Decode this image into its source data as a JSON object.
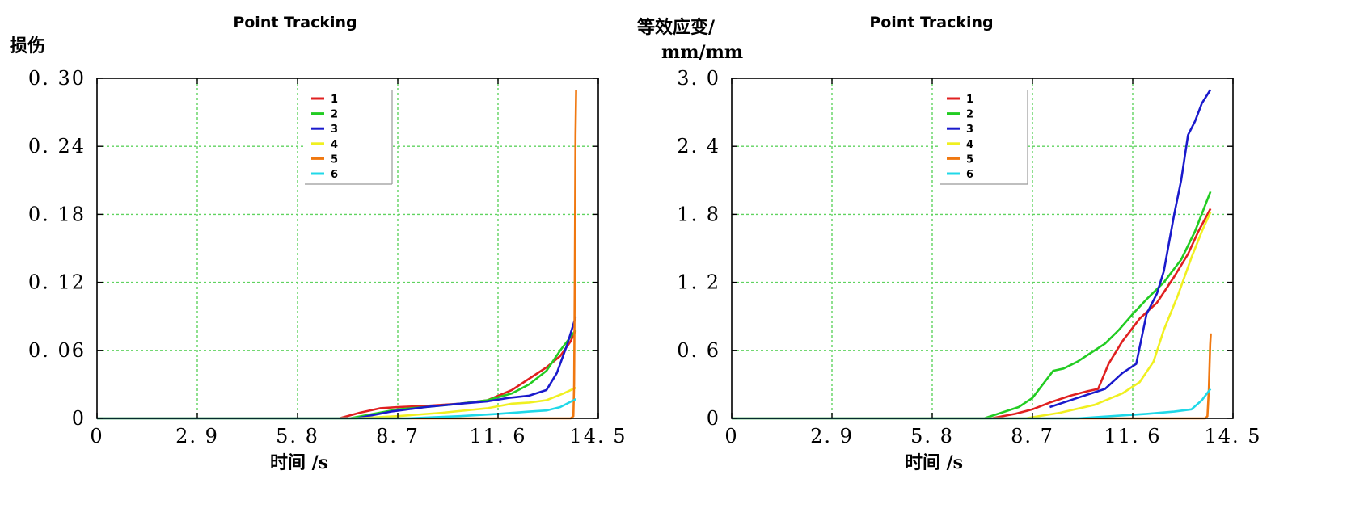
{
  "chart_data": [
    {
      "type": "line",
      "title": "Point Tracking",
      "xlabel": "时间 /s",
      "ylabel": "损伤",
      "ylabel_lines": [
        "损伤"
      ],
      "xlim": [
        0,
        14.5
      ],
      "ylim": [
        0,
        0.3
      ],
      "xticks": [
        0,
        2.9,
        5.8,
        8.7,
        11.6,
        14.5
      ],
      "xtick_labels": [
        "0",
        "2. 9",
        "5. 8",
        "8. 7",
        "11. 6",
        "14. 5"
      ],
      "yticks": [
        0,
        0.06,
        0.12,
        0.18,
        0.24,
        0.3
      ],
      "ytick_labels": [
        "0",
        "0. 06",
        "0. 12",
        "0. 18",
        "0. 24",
        "0. 30"
      ],
      "grid": true,
      "legend_position": "top-center",
      "series": [
        {
          "name": "1",
          "color": "#e02020",
          "x": [
            0,
            7.0,
            7.6,
            8.2,
            8.7,
            9.5,
            10.5,
            11.3,
            12.0,
            12.5,
            13.0,
            13.4,
            13.7,
            13.8,
            13.85
          ],
          "y": [
            0,
            0,
            0.005,
            0.009,
            0.01,
            0.011,
            0.013,
            0.016,
            0.025,
            0.035,
            0.045,
            0.055,
            0.068,
            0.075,
            0.077
          ]
        },
        {
          "name": "2",
          "color": "#22cc22",
          "x": [
            0,
            7.3,
            8.0,
            8.7,
            9.5,
            10.5,
            11.3,
            12.0,
            12.5,
            13.0,
            13.4,
            13.7,
            13.85
          ],
          "y": [
            0,
            0,
            0.004,
            0.008,
            0.01,
            0.013,
            0.016,
            0.022,
            0.03,
            0.042,
            0.06,
            0.072,
            0.078
          ]
        },
        {
          "name": "3",
          "color": "#1a1acc",
          "x": [
            0,
            7.5,
            8.5,
            9.5,
            10.5,
            11.3,
            11.9,
            12.5,
            13.0,
            13.3,
            13.6,
            13.8,
            13.85
          ],
          "y": [
            0,
            0,
            0.006,
            0.01,
            0.013,
            0.015,
            0.018,
            0.02,
            0.025,
            0.04,
            0.065,
            0.085,
            0.09
          ]
        },
        {
          "name": "4",
          "color": "#f0f020",
          "x": [
            0,
            7.5,
            8.7,
            10.0,
            11.3,
            12.0,
            12.5,
            13.0,
            13.5,
            13.85
          ],
          "y": [
            0,
            0,
            0.002,
            0.005,
            0.009,
            0.013,
            0.014,
            0.016,
            0.022,
            0.027
          ]
        },
        {
          "name": "5",
          "color": "#f07810",
          "x": [
            0,
            13.7,
            13.78,
            13.8,
            13.82,
            13.84,
            13.86
          ],
          "y": [
            0,
            0,
            0.002,
            0.03,
            0.12,
            0.25,
            0.29
          ]
        },
        {
          "name": "6",
          "color": "#20d8e8",
          "x": [
            0,
            9.0,
            10.5,
            11.6,
            12.5,
            13.0,
            13.4,
            13.85
          ],
          "y": [
            0,
            0,
            0.002,
            0.004,
            0.006,
            0.007,
            0.01,
            0.017
          ]
        }
      ]
    },
    {
      "type": "line",
      "title": "Point Tracking",
      "xlabel": "时间 /s",
      "ylabel": "等效应变/ mm/mm",
      "ylabel_lines": [
        "等效应变/",
        "mm/mm"
      ],
      "xlim": [
        0,
        14.5
      ],
      "ylim": [
        0,
        3.0
      ],
      "xticks": [
        0,
        2.9,
        5.8,
        8.7,
        11.6,
        14.5
      ],
      "xtick_labels": [
        "0",
        "2. 9",
        "5. 8",
        "8. 7",
        "11. 6",
        "14. 5"
      ],
      "yticks": [
        0,
        0.6,
        1.2,
        1.8,
        2.4,
        3.0
      ],
      "ytick_labels": [
        "0",
        "0. 6",
        "1. 2",
        "1. 8",
        "2. 4",
        "3. 0"
      ],
      "grid": true,
      "legend_position": "top-center",
      "series": [
        {
          "name": "1",
          "color": "#e02020",
          "x": [
            0,
            7.5,
            8.2,
            8.7,
            9.2,
            9.8,
            10.3,
            10.6,
            10.9,
            11.3,
            11.8,
            12.3,
            12.8,
            13.2,
            13.5,
            13.85
          ],
          "y": [
            0,
            0,
            0.04,
            0.08,
            0.14,
            0.2,
            0.24,
            0.26,
            0.48,
            0.68,
            0.88,
            1.02,
            1.25,
            1.45,
            1.65,
            1.85
          ]
        },
        {
          "name": "2",
          "color": "#22cc22",
          "x": [
            0,
            7.3,
            7.8,
            8.3,
            8.7,
            9.0,
            9.3,
            9.6,
            10.0,
            10.4,
            10.8,
            11.2,
            11.6,
            12.0,
            12.5,
            13.0,
            13.4,
            13.85
          ],
          "y": [
            0,
            0,
            0.05,
            0.1,
            0.18,
            0.3,
            0.42,
            0.44,
            0.5,
            0.58,
            0.66,
            0.78,
            0.92,
            1.05,
            1.2,
            1.4,
            1.65,
            2.0
          ]
        },
        {
          "name": "3",
          "color": "#1a1acc",
          "x": [
            9.2,
            10.0,
            10.8,
            11.3,
            11.7,
            12.0,
            12.3,
            12.5,
            12.8,
            13.0,
            13.2,
            13.4,
            13.6,
            13.85
          ],
          "y": [
            0.1,
            0.18,
            0.26,
            0.4,
            0.48,
            0.92,
            1.1,
            1.3,
            1.8,
            2.1,
            2.5,
            2.62,
            2.78,
            2.9
          ]
        },
        {
          "name": "4",
          "color": "#f0f020",
          "x": [
            0,
            8.5,
            9.5,
            10.5,
            11.3,
            11.8,
            12.2,
            12.5,
            12.9,
            13.3,
            13.6,
            13.85
          ],
          "y": [
            0,
            0,
            0.05,
            0.12,
            0.22,
            0.32,
            0.5,
            0.78,
            1.08,
            1.42,
            1.65,
            1.82
          ]
        },
        {
          "name": "5",
          "color": "#f07810",
          "x": [
            0,
            13.7,
            13.76,
            13.8,
            13.84,
            13.86
          ],
          "y": [
            0,
            0,
            0.02,
            0.25,
            0.65,
            0.75
          ]
        },
        {
          "name": "6",
          "color": "#20d8e8",
          "x": [
            0,
            10.0,
            11.0,
            12.0,
            12.8,
            13.3,
            13.6,
            13.85
          ],
          "y": [
            0,
            0,
            0.02,
            0.04,
            0.06,
            0.08,
            0.16,
            0.26
          ]
        }
      ]
    }
  ]
}
